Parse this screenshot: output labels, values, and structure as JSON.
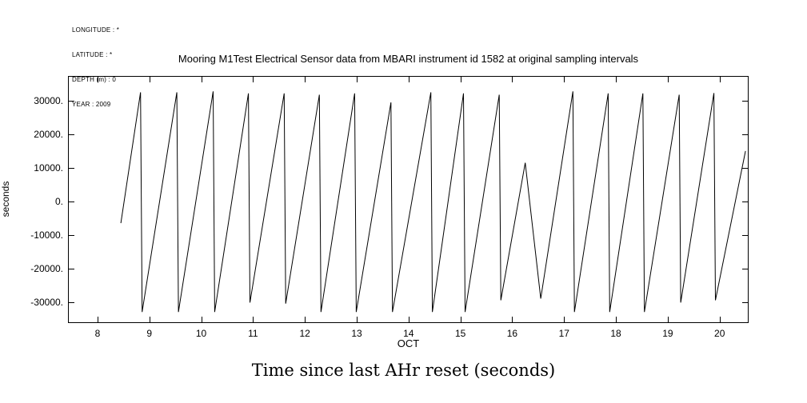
{
  "metadata": {
    "longitude": "LONGITUDE : *",
    "latitude": "LATITUDE : *",
    "depth": "DEPTH (m) : 0",
    "year": "YEAR : 2009"
  },
  "title": "Mooring M1Test Electrical Sensor data from MBARI instrument id 1582 at original sampling intervals",
  "caption": "Time since last AHr reset (seconds)",
  "chart_data": {
    "type": "line",
    "title": "Mooring M1Test Electrical Sensor data from MBARI instrument id 1582 at original sampling intervals",
    "xlabel": "OCT",
    "ylabel": "seconds",
    "line_color": "#000000",
    "frame_color": "#000000",
    "grid": false,
    "legend": "none",
    "x_axis": {
      "month_label": "OCT",
      "tick_values": [
        8,
        9,
        10,
        11,
        12,
        13,
        14,
        15,
        16,
        17,
        18,
        19,
        20
      ],
      "tick_labels": [
        "8",
        "9",
        "10",
        "11",
        "12",
        "13",
        "14",
        "15",
        "16",
        "17",
        "18",
        "19",
        "20"
      ],
      "domain": [
        7.43,
        20.56
      ]
    },
    "y_axis": {
      "tick_values": [
        30000,
        20000,
        10000,
        0,
        -10000,
        -20000,
        -30000
      ],
      "tick_labels": [
        "30000.",
        "20000.",
        "10000.",
        "0.",
        "-10000.",
        "-20000.",
        "-30000."
      ],
      "domain": [
        -36300,
        37400
      ]
    },
    "series": [
      {
        "name": "time-since-last-AHr-reset",
        "units": "seconds",
        "points": [
          [
            8.45,
            -6500
          ],
          [
            8.83,
            32500
          ],
          [
            8.86,
            -33000
          ],
          [
            9.53,
            32500
          ],
          [
            9.56,
            -33000
          ],
          [
            10.23,
            32800
          ],
          [
            10.26,
            -33000
          ],
          [
            10.91,
            32200
          ],
          [
            10.94,
            -30200
          ],
          [
            11.6,
            32200
          ],
          [
            11.63,
            -30500
          ],
          [
            12.28,
            31800
          ],
          [
            12.31,
            -33000
          ],
          [
            12.96,
            32200
          ],
          [
            12.99,
            -33000
          ],
          [
            13.66,
            29500
          ],
          [
            13.69,
            -33000
          ],
          [
            14.43,
            32500
          ],
          [
            14.46,
            -33000
          ],
          [
            15.06,
            32200
          ],
          [
            15.09,
            -33000
          ],
          [
            15.75,
            31800
          ],
          [
            15.78,
            -29500
          ],
          [
            16.25,
            11500
          ],
          [
            16.55,
            -29000
          ],
          [
            17.17,
            32800
          ],
          [
            17.2,
            -33000
          ],
          [
            17.85,
            32200
          ],
          [
            17.88,
            -33000
          ],
          [
            18.52,
            32200
          ],
          [
            18.55,
            -33000
          ],
          [
            19.22,
            31800
          ],
          [
            19.25,
            -30200
          ],
          [
            19.89,
            32300
          ],
          [
            19.92,
            -29500
          ],
          [
            20.5,
            15000
          ]
        ]
      }
    ]
  }
}
